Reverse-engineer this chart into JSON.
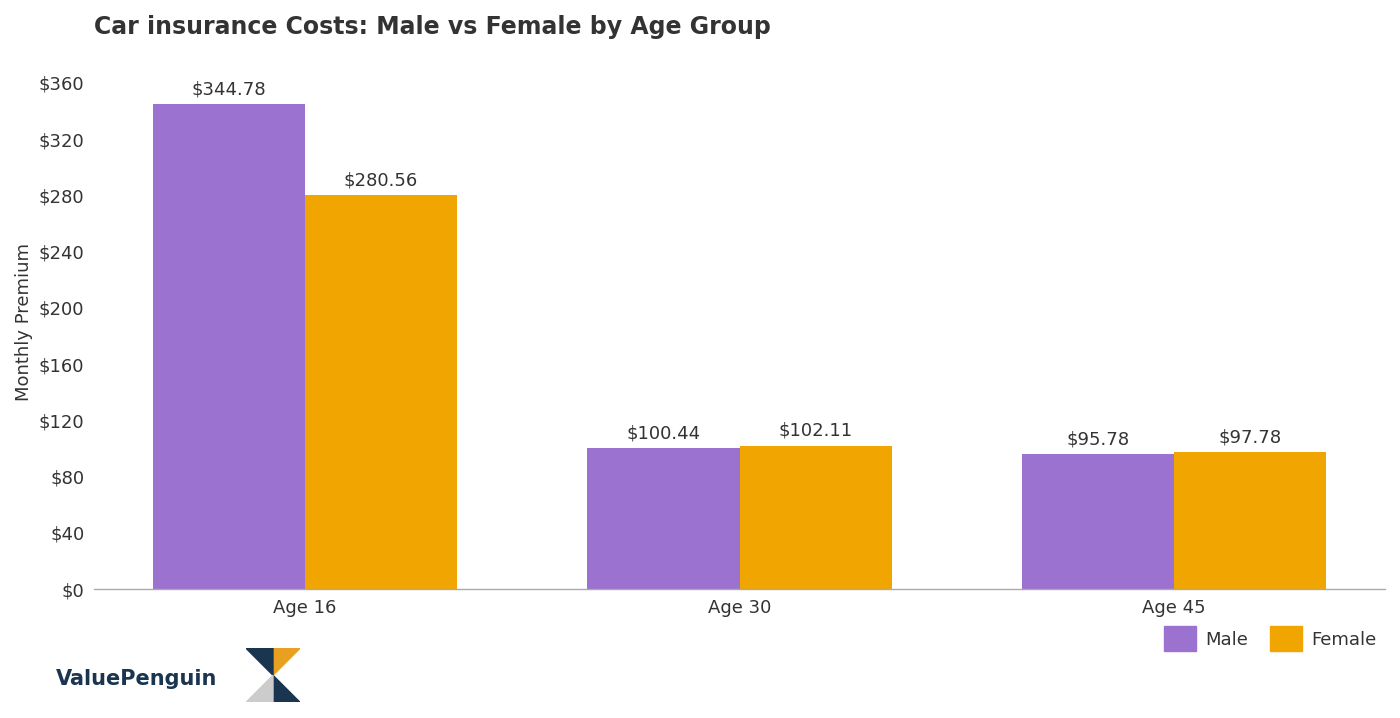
{
  "title": "Car insurance Costs: Male vs Female by Age Group",
  "ylabel": "Monthly Premium",
  "categories": [
    "Age 16",
    "Age 30",
    "Age 45"
  ],
  "male_values": [
    344.78,
    100.44,
    95.78
  ],
  "female_values": [
    280.56,
    102.11,
    97.78
  ],
  "male_color": "#9B72CF",
  "female_color": "#F0A500",
  "background_color": "#FFFFFF",
  "ylim": [
    0,
    380
  ],
  "yticks": [
    0,
    40,
    80,
    120,
    160,
    200,
    240,
    280,
    320,
    360
  ],
  "bar_width": 0.35,
  "title_fontsize": 17,
  "label_fontsize": 13,
  "tick_fontsize": 13,
  "annotation_fontsize": 13,
  "legend_labels": [
    "Male",
    "Female"
  ],
  "text_color": "#333333",
  "logo_text_color": "#1a3550",
  "logo_dark": "#1a3550",
  "logo_gold": "#E8A020",
  "logo_light": "#cccccc"
}
